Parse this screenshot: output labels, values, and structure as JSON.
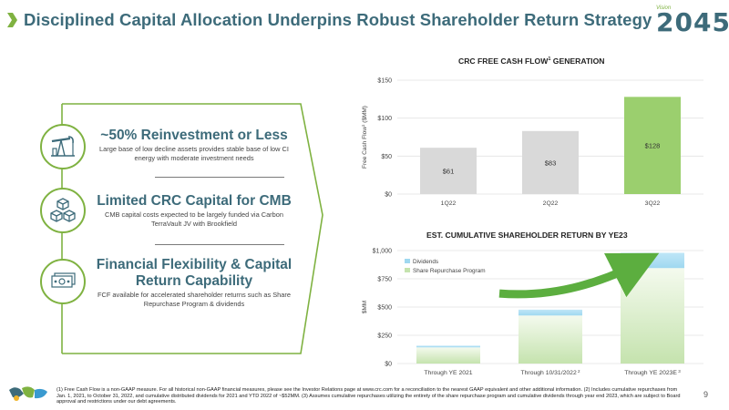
{
  "title": "Disciplined Capital Allocation Underpins Robust Shareholder Return Strategy",
  "logo": {
    "vision": "Vision",
    "number": "2045"
  },
  "points": [
    {
      "heading": "~50% Reinvestment or Less",
      "desc": "Large base of low decline assets provides stable base of low CI energy with moderate investment needs",
      "icon": "oil-pump-icon"
    },
    {
      "heading": "Limited CRC Capital for CMB",
      "desc": "CMB capital costs expected to be largely funded via Carbon TerraVault JV with Brookfield",
      "icon": "cubes-icon"
    },
    {
      "heading": "Financial Flexibility & Capital Return Capability",
      "desc": "FCF available for accelerated shareholder returns such as Share Repurchase Program & dividends",
      "icon": "cash-icon"
    }
  ],
  "chart_data": [
    {
      "type": "bar",
      "title": "CRC FREE CASH FLOW",
      "title_sup": "1",
      "title_suffix": " GENERATION",
      "ylabel": "Free Cash Flow",
      "ylabel_sup": "1",
      "ylabel_suffix": " ($MM)",
      "categories": [
        "1Q22",
        "2Q22",
        "3Q22"
      ],
      "values": [
        61,
        83,
        128
      ],
      "data_labels": [
        "$61",
        "$83",
        "$128"
      ],
      "ylim": [
        0,
        150
      ],
      "yticks": [
        0,
        50,
        100,
        150
      ],
      "ytick_labels": [
        "$0",
        "$50",
        "$100",
        "$150"
      ],
      "colors": [
        "#d9d9d9",
        "#d9d9d9",
        "#9bcf6e"
      ],
      "grid": true
    },
    {
      "type": "bar",
      "stacked": true,
      "title": "EST. CUMULATIVE SHAREHOLDER RETURN BY YE23",
      "ylabel": "$MM",
      "categories": [
        "Through YE 2021",
        "Through 10/31/2022",
        "Through YE 2023E"
      ],
      "category_sups": [
        "",
        "2",
        "3"
      ],
      "series": [
        {
          "name": "Share Repurchase Program",
          "values": [
            143,
            425,
            845
          ],
          "color": "#c5e3ae"
        },
        {
          "name": "Dividends",
          "values": [
            15,
            52,
            135
          ],
          "color": "#9fd8f0"
        }
      ],
      "ylim": [
        0,
        1000
      ],
      "yticks": [
        0,
        250,
        500,
        750,
        1000
      ],
      "ytick_labels": [
        "$0",
        "$250",
        "$500",
        "$750",
        "$1,000"
      ],
      "legend": "top-left",
      "legend_order": [
        "Dividends",
        "Share Repurchase Program"
      ],
      "grid": true
    }
  ],
  "footnote": "(1) Free Cash Flow is a non-GAAP measure. For all historical non-GAAP financial measures, please see the Investor Relations page at www.crc.com for a reconciliation to the nearest GAAP equivalent and other additional information. (2) Includes cumulative repurchases from Jan. 1, 2021, to October 31, 2022, and cumulative distributed dividends for 2021 and YTD 2022 of ~$52MM. (3) Assumes cumulative repurchases utilizing the entirety of the share repurchase program and cumulative dividends through year end 2023, which are subject to Board approval and restrictions under our debt agreements.",
  "page_number": "9",
  "colors": {
    "brand_teal": "#3d6b7a",
    "brand_green": "#7fb241",
    "arrow_green": "#5cae3f"
  }
}
